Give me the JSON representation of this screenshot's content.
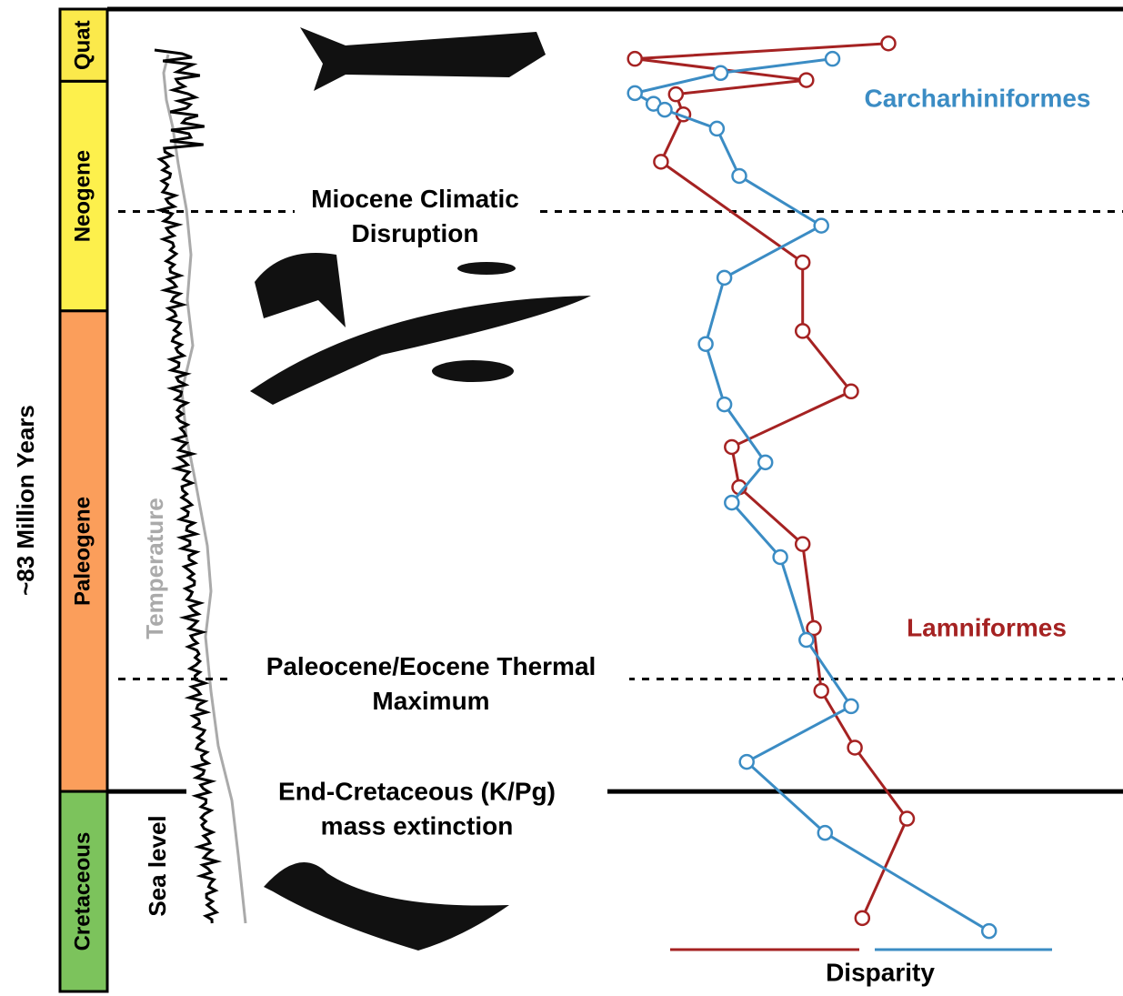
{
  "chart_data": {
    "type": "line",
    "axis_label": "~83 Million Years",
    "x_label": "Disparity",
    "xlim": [
      0,
      1
    ],
    "ylim": [
      0,
      83
    ],
    "periods": [
      {
        "name": "Quat",
        "start": 0,
        "end": 6.1,
        "color": "#fbe94b"
      },
      {
        "name": "Neogene",
        "start": 6.1,
        "end": 25.5,
        "color": "#fdf04c"
      },
      {
        "name": "Paleogene",
        "start": 25.5,
        "end": 66.1,
        "color": "#fb9e5b"
      },
      {
        "name": "Cretaceous",
        "start": 66.1,
        "end": 83,
        "color": "#7cc35c"
      }
    ],
    "events": [
      {
        "lines": [
          "Miocene Climatic",
          "Disruption"
        ],
        "time": 17.1,
        "style": "dashed"
      },
      {
        "lines": [
          "Paleocene/Eocene Thermal",
          "Maximum"
        ],
        "time": 56.6,
        "style": "dashed"
      },
      {
        "lines": [
          "End-Cretaceous (K/Pg)",
          "mass extinction"
        ],
        "time": 66.1,
        "style": "solid"
      }
    ],
    "curve_labels": [
      "Temperature",
      "Sea level"
    ],
    "series": [
      {
        "name": "Lamniformes",
        "color": "#a52222",
        "time": [
          2.9,
          4.2,
          6.0,
          7.2,
          8.9,
          12.9,
          21.4,
          27.2,
          32.3,
          37.0,
          40.4,
          45.2,
          52.3,
          57.6,
          62.4,
          68.4,
          76.8
        ],
        "values": [
          0.7,
          0.02,
          0.48,
          0.13,
          0.15,
          0.09,
          0.47,
          0.47,
          0.6,
          0.28,
          0.3,
          0.47,
          0.5,
          0.52,
          0.61,
          0.75,
          0.63
        ]
      },
      {
        "name": "Carcharhiniformes",
        "color": "#3b8cc4",
        "time": [
          4.2,
          5.4,
          7.1,
          8.0,
          8.5,
          10.1,
          14.1,
          18.3,
          22.7,
          28.3,
          33.4,
          38.3,
          41.7,
          46.3,
          53.3,
          58.9,
          63.6,
          69.6,
          77.9
        ],
        "values": [
          0.55,
          0.25,
          0.02,
          0.07,
          0.1,
          0.24,
          0.3,
          0.52,
          0.26,
          0.21,
          0.26,
          0.37,
          0.28,
          0.41,
          0.48,
          0.6,
          0.32,
          0.53,
          0.97
        ]
      }
    ]
  }
}
